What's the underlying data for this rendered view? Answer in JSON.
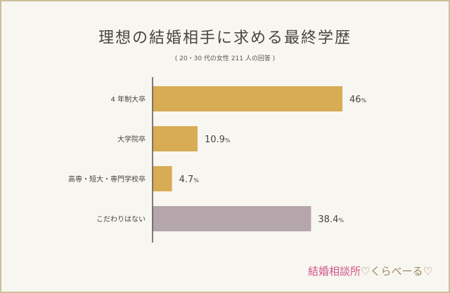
{
  "chart_data": {
    "type": "bar",
    "orientation": "horizontal",
    "title": "理想の結婚相手に求める最終学歴",
    "subtitle": "( 20・30 代の女性 211 人の回答 )",
    "categories": [
      "4 年制大卒",
      "大学院卒",
      "高専・短大・専門学校卒",
      "こだわりはない"
    ],
    "values": [
      46,
      10.9,
      4.7,
      38.4
    ],
    "value_labels": [
      "46",
      "10.9",
      "4.7",
      "38.4"
    ],
    "unit": "%",
    "colors": [
      "#d8ab55",
      "#d8ab55",
      "#d8ab55",
      "#b4a6aa"
    ],
    "xlim": [
      0,
      50
    ],
    "grid": false
  },
  "logo": {
    "main": "結婚相談所",
    "sub": "♡くらべーる♡"
  }
}
